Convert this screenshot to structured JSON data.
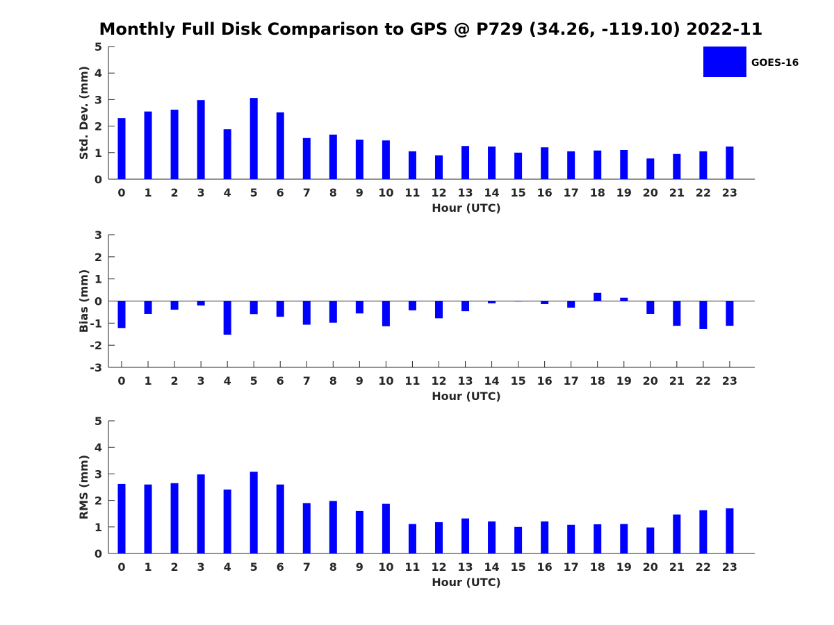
{
  "chart_data": [
    {
      "type": "bar",
      "title": "Monthly Full Disk Comparison to GPS @ P729 (34.26, -119.10) 2022-11",
      "xlabel": "Hour (UTC)",
      "ylabel": "Std. Dev. (mm)",
      "ylim": [
        0,
        5
      ],
      "yticks": [
        "0",
        "1",
        "2",
        "3",
        "4",
        "5"
      ],
      "categories": [
        "0",
        "1",
        "2",
        "3",
        "4",
        "5",
        "6",
        "7",
        "8",
        "9",
        "10",
        "11",
        "12",
        "13",
        "14",
        "15",
        "16",
        "17",
        "18",
        "19",
        "20",
        "21",
        "22",
        "23"
      ],
      "series": [
        {
          "name": "GOES-16",
          "color": "#0000ff",
          "values": [
            2.3,
            2.55,
            2.62,
            2.98,
            1.88,
            3.06,
            2.52,
            1.55,
            1.68,
            1.49,
            1.46,
            1.05,
            0.9,
            1.25,
            1.23,
            1.0,
            1.2,
            1.05,
            1.08,
            1.1,
            0.78,
            0.95,
            1.05,
            1.23
          ]
        }
      ],
      "legend": {
        "label": "GOES-16",
        "position": "top-right"
      }
    },
    {
      "type": "bar",
      "xlabel": "Hour (UTC)",
      "ylabel": "Bias (mm)",
      "ylim": [
        -3,
        3
      ],
      "yticks": [
        "-3",
        "-2",
        "-1",
        "0",
        "1",
        "2",
        "3"
      ],
      "categories": [
        "0",
        "1",
        "2",
        "3",
        "4",
        "5",
        "6",
        "7",
        "8",
        "9",
        "10",
        "11",
        "12",
        "13",
        "14",
        "15",
        "16",
        "17",
        "18",
        "19",
        "20",
        "21",
        "22",
        "23"
      ],
      "series": [
        {
          "name": "GOES-16",
          "color": "#0000ff",
          "values": [
            -1.22,
            -0.58,
            -0.39,
            -0.2,
            -1.52,
            -0.59,
            -0.71,
            -1.07,
            -0.98,
            -0.56,
            -1.14,
            -0.42,
            -0.78,
            -0.46,
            -0.1,
            -0.02,
            -0.14,
            -0.3,
            0.37,
            0.15,
            -0.58,
            -1.12,
            -1.27,
            -1.12
          ]
        }
      ]
    },
    {
      "type": "bar",
      "xlabel": "Hour (UTC)",
      "ylabel": "RMS (mm)",
      "ylim": [
        0,
        5
      ],
      "yticks": [
        "0",
        "1",
        "2",
        "3",
        "4",
        "5"
      ],
      "categories": [
        "0",
        "1",
        "2",
        "3",
        "4",
        "5",
        "6",
        "7",
        "8",
        "9",
        "10",
        "11",
        "12",
        "13",
        "14",
        "15",
        "16",
        "17",
        "18",
        "19",
        "20",
        "21",
        "22",
        "23"
      ],
      "series": [
        {
          "name": "GOES-16",
          "color": "#0000ff",
          "values": [
            2.62,
            2.6,
            2.65,
            2.98,
            2.41,
            3.08,
            2.6,
            1.9,
            1.98,
            1.6,
            1.87,
            1.11,
            1.18,
            1.32,
            1.21,
            1.0,
            1.21,
            1.08,
            1.1,
            1.11,
            0.98,
            1.47,
            1.63,
            1.7
          ]
        }
      ]
    }
  ]
}
